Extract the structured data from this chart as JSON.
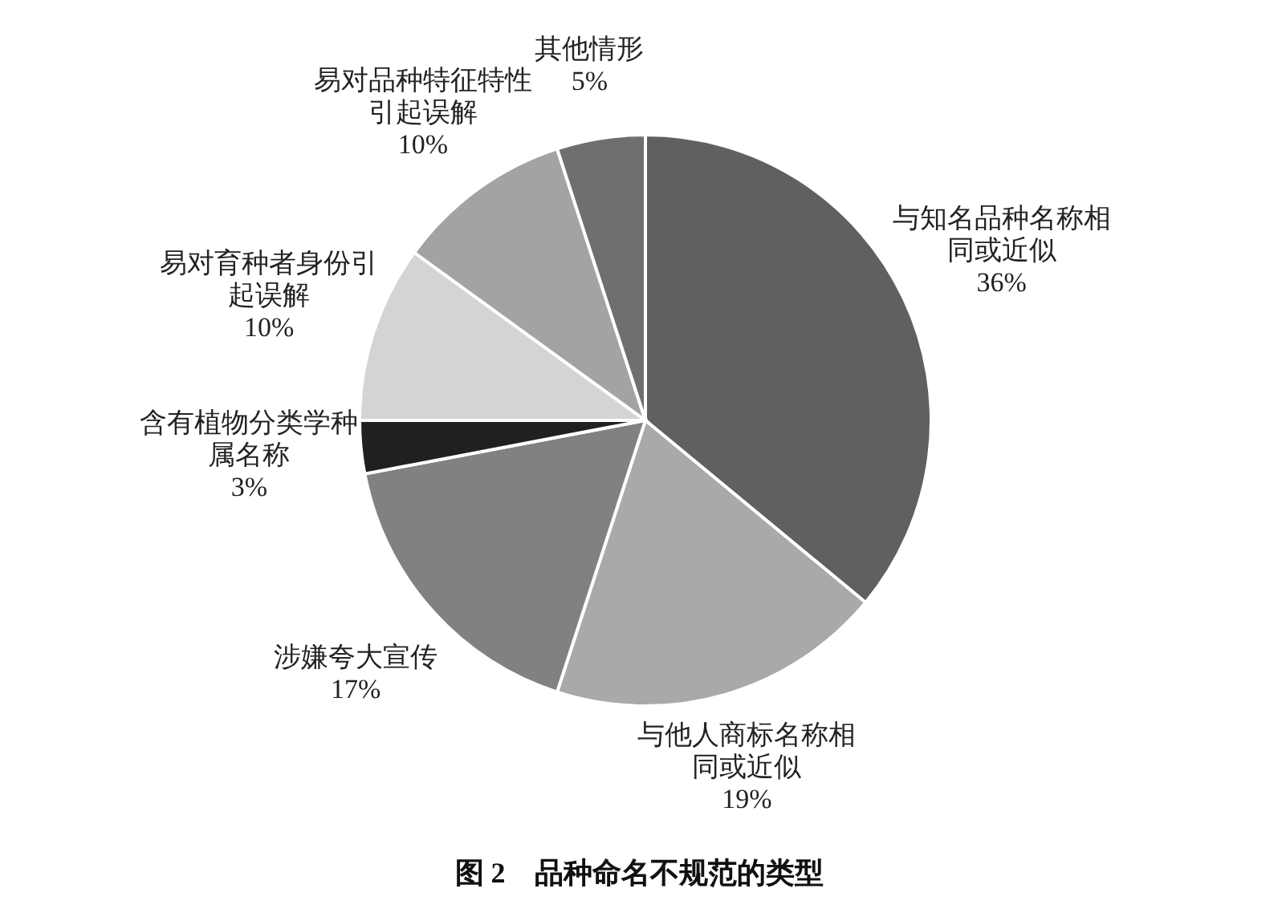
{
  "chart_data": {
    "type": "pie",
    "title": "图 2　品种命名不规范的类型",
    "categories": [
      "与知名品种名称相同或近似",
      "与他人商标名称相同或近似",
      "涉嫌夸大宣传",
      "含有植物分类学种属名称",
      "易对育种者身份引起误解",
      "易对品种特征特性引起误解",
      "其他情形"
    ],
    "values": [
      36,
      19,
      17,
      3,
      10,
      10,
      5
    ],
    "value_labels": [
      "36%",
      "19%",
      "17%",
      "3%",
      "10%",
      "10%",
      "5%"
    ],
    "colors": [
      "#5f6062",
      "#a9a9aa",
      "#808183",
      "#202020",
      "#d4d4d4",
      "#a3a3a4",
      "#6e6f71"
    ]
  }
}
